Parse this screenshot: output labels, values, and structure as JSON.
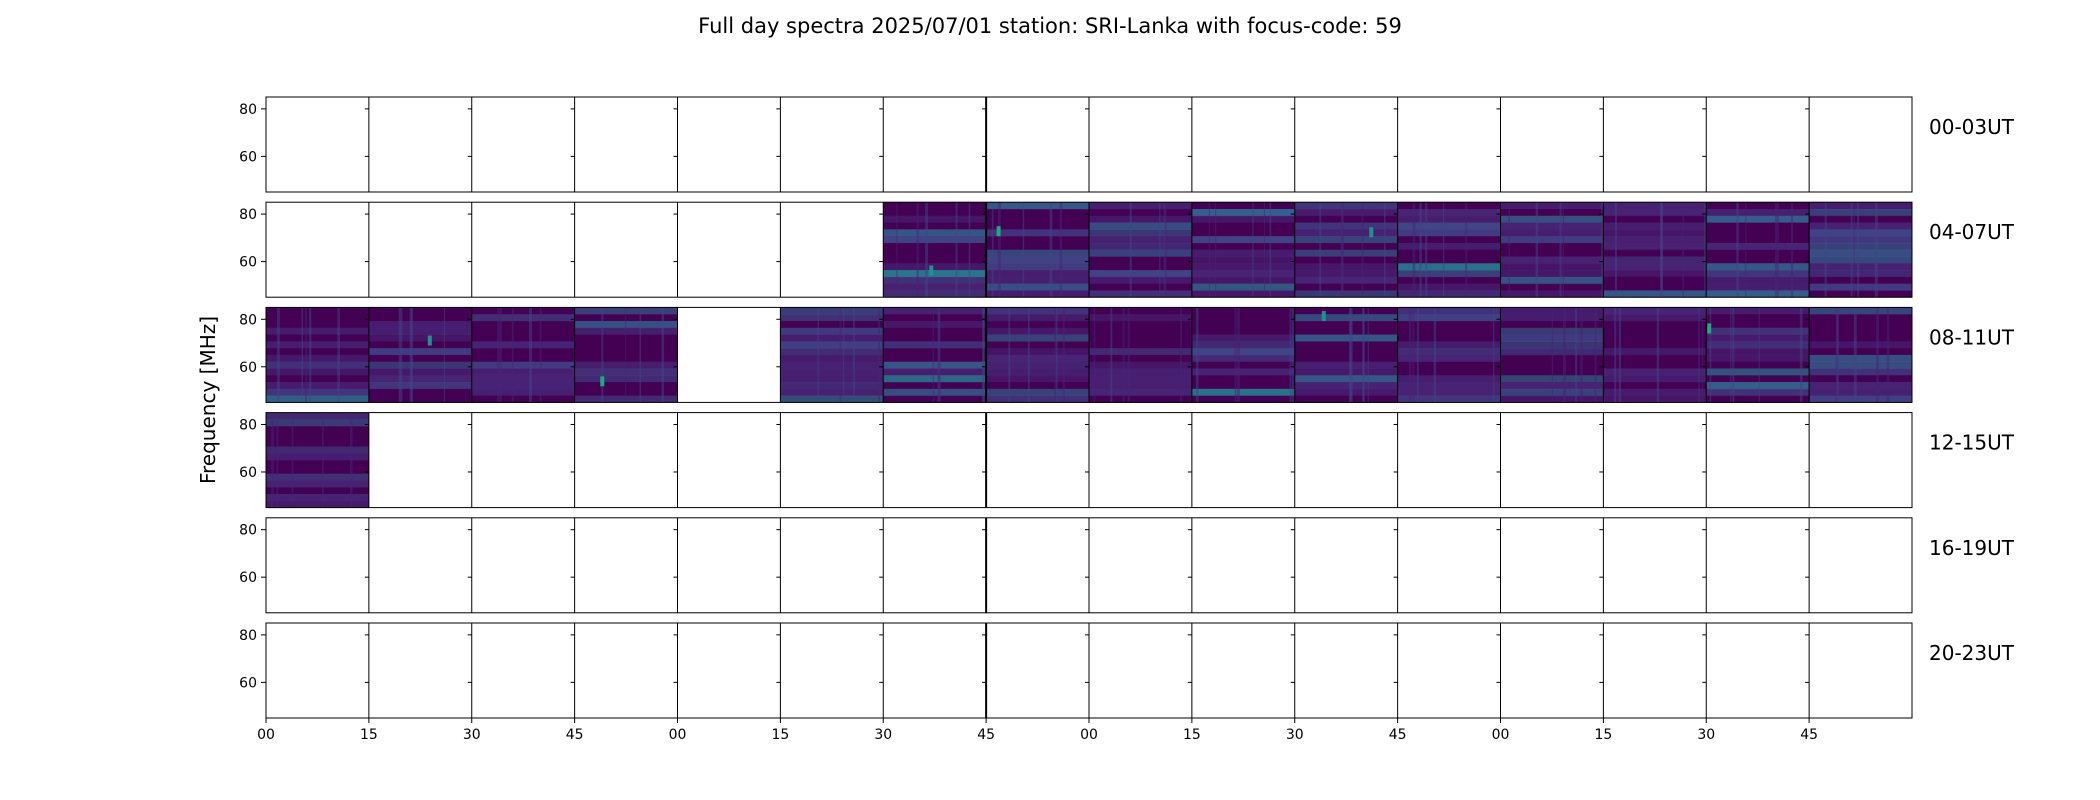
{
  "chart_data": {
    "type": "heatmap",
    "title": "Full day spectra 2025/07/01 station: SRI-Lanka with focus-code: 59",
    "ylabel": "Frequency [MHz]",
    "xlabel": "",
    "ylim": [
      45,
      85
    ],
    "ytick_labels": [
      "80",
      "60"
    ],
    "ytick_values": [
      80,
      60
    ],
    "xtick_labels": [
      "00",
      "15",
      "30",
      "45",
      "00",
      "15",
      "30",
      "45",
      "00",
      "15",
      "30",
      "45",
      "00",
      "15",
      "30",
      "45"
    ],
    "slots_per_row": 16,
    "colormap": [
      "#440154",
      "#482475",
      "#414487",
      "#355f8d",
      "#2a788e",
      "#21918c",
      "#22a884",
      "#44bf70"
    ],
    "empty_color": "#ffffff",
    "rows": [
      {
        "label": "00-03UT",
        "available": [
          0,
          0,
          0,
          0,
          0,
          0,
          0,
          0,
          0,
          0,
          0,
          0,
          0,
          0,
          0,
          0
        ]
      },
      {
        "label": "04-07UT",
        "available": [
          0,
          0,
          0,
          0,
          0,
          0,
          1,
          1,
          1,
          1,
          1,
          1,
          1,
          1,
          1,
          1
        ]
      },
      {
        "label": "08-11UT",
        "available": [
          1,
          1,
          1,
          1,
          0,
          1,
          1,
          1,
          1,
          1,
          1,
          1,
          1,
          1,
          1,
          1
        ]
      },
      {
        "label": "12-15UT",
        "available": [
          1,
          0,
          0,
          0,
          0,
          0,
          0,
          0,
          0,
          0,
          0,
          0,
          0,
          0,
          0,
          0
        ]
      },
      {
        "label": "16-19UT",
        "available": [
          0,
          0,
          0,
          0,
          0,
          0,
          0,
          0,
          0,
          0,
          0,
          0,
          0,
          0,
          0,
          0
        ]
      },
      {
        "label": "20-23UT",
        "available": [
          0,
          0,
          0,
          0,
          0,
          0,
          0,
          0,
          0,
          0,
          0,
          0,
          0,
          0,
          0,
          0
        ]
      }
    ]
  }
}
